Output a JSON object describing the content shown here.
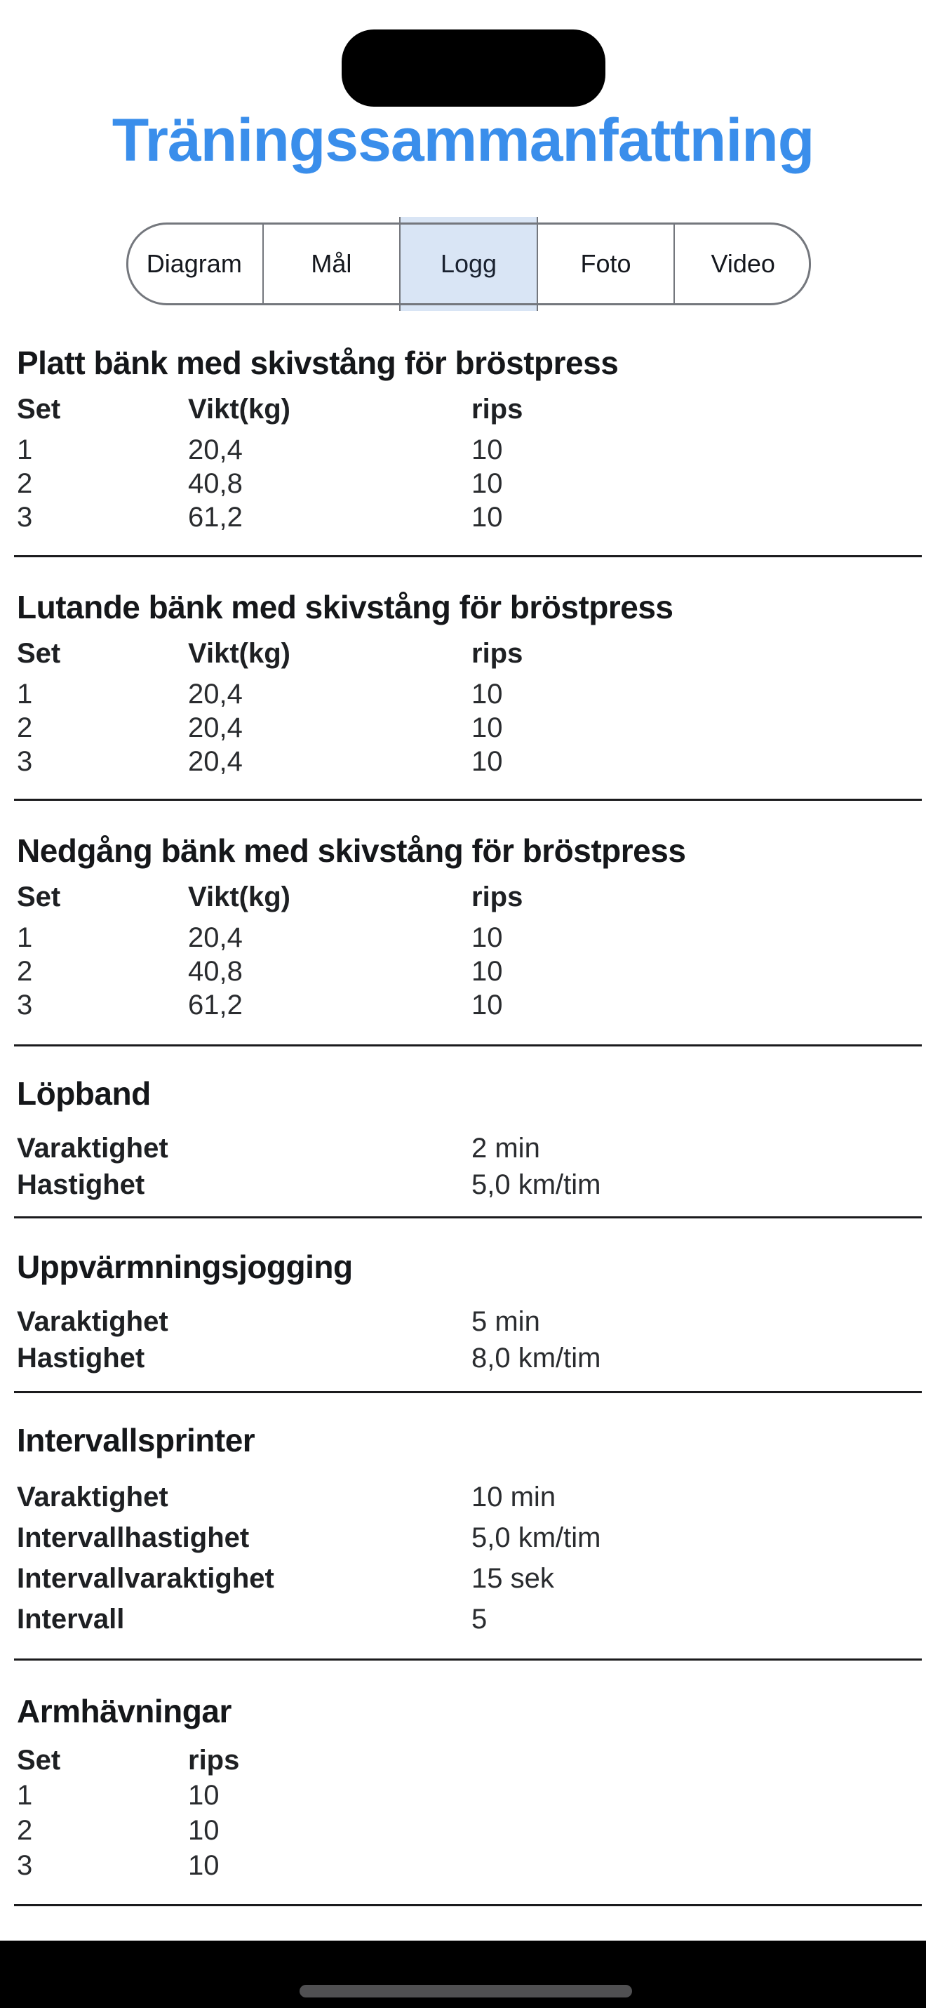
{
  "header": {
    "title": "Träningssammanfattning"
  },
  "tabs": {
    "items": [
      {
        "label": "Diagram",
        "selected": false
      },
      {
        "label": "Mål",
        "selected": false
      },
      {
        "label": "Logg",
        "selected": true
      },
      {
        "label": "Foto",
        "selected": false
      },
      {
        "label": "Video",
        "selected": false
      }
    ]
  },
  "sections": [
    {
      "title": "Platt bänk med skivstång för bröstpress",
      "columns": [
        "Set",
        "Vikt(kg)",
        "rips"
      ],
      "rows": [
        [
          "1",
          "20,4",
          "10"
        ],
        [
          "2",
          "40,8",
          "10"
        ],
        [
          "3",
          "61,2",
          "10"
        ]
      ]
    },
    {
      "title": "Lutande bänk med skivstång för bröstpress",
      "columns": [
        "Set",
        "Vikt(kg)",
        "rips"
      ],
      "rows": [
        [
          "1",
          "20,4",
          "10"
        ],
        [
          "2",
          "20,4",
          "10"
        ],
        [
          "3",
          "20,4",
          "10"
        ]
      ]
    },
    {
      "title": "Nedgång bänk med skivstång för bröstpress",
      "columns": [
        "Set",
        "Vikt(kg)",
        "rips"
      ],
      "rows": [
        [
          "1",
          "20,4",
          "10"
        ],
        [
          "2",
          "40,8",
          "10"
        ],
        [
          "3",
          "61,2",
          "10"
        ]
      ]
    },
    {
      "title": "Löpband",
      "fields": [
        {
          "label": "Varaktighet",
          "value": "2 min"
        },
        {
          "label": "Hastighet",
          "value": "5,0 km/tim"
        }
      ]
    },
    {
      "title": "Uppvärmningsjogging",
      "fields": [
        {
          "label": "Varaktighet",
          "value": "5 min"
        },
        {
          "label": "Hastighet",
          "value": "8,0 km/tim"
        }
      ]
    },
    {
      "title": "Intervallsprinter",
      "fields": [
        {
          "label": "Varaktighet",
          "value": "10 min"
        },
        {
          "label": "Intervallhastighet",
          "value": "5,0 km/tim"
        },
        {
          "label": "Intervallvaraktighet",
          "value": "15 sek"
        },
        {
          "label": "Intervall",
          "value": "5"
        }
      ]
    },
    {
      "title": "Armhävningar",
      "columns": [
        "Set",
        "rips"
      ],
      "rows": [
        [
          "1",
          "10"
        ],
        [
          "2",
          "10"
        ],
        [
          "3",
          "10"
        ]
      ]
    }
  ],
  "colors": {
    "title_accent": "#3a8eeb",
    "tab_selected_bg": "#d9e5f5",
    "tab_border": "#74777d",
    "divider": "#1b1b1d",
    "bottom_bar": "#000000",
    "home_indicator": "#505052"
  }
}
